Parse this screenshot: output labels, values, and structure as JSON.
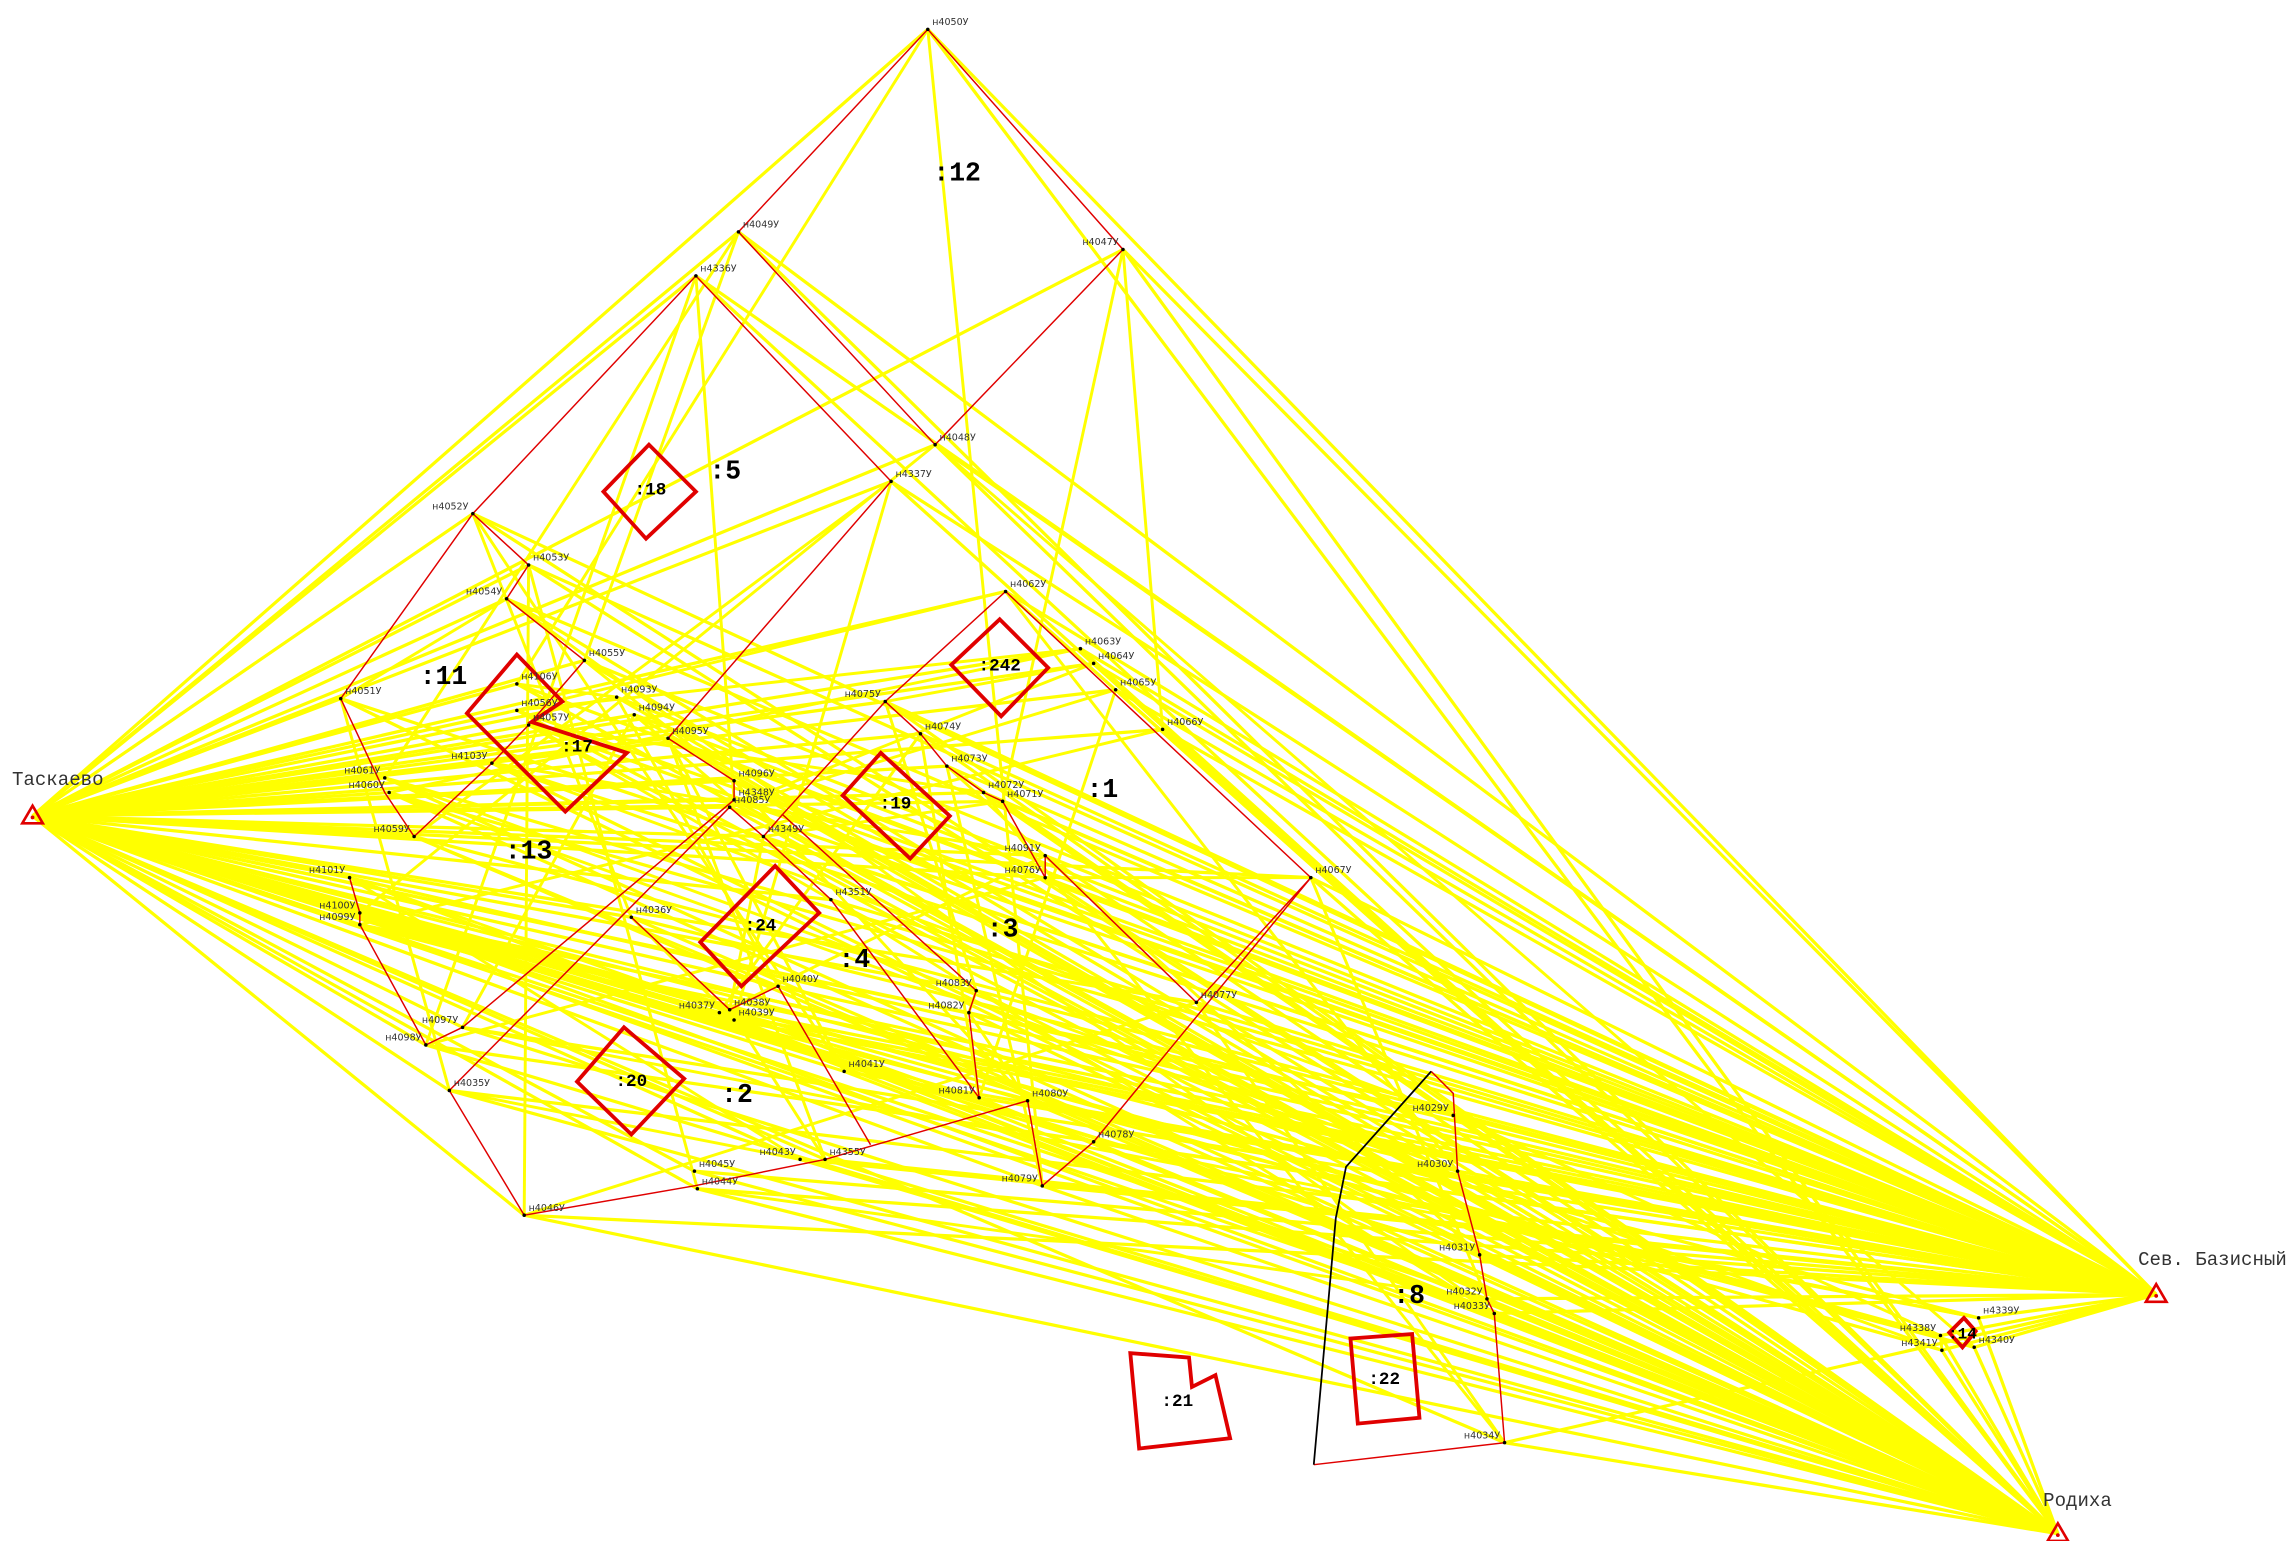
{
  "stations": [
    {
      "label": "Таскаево"
    },
    {
      "label": "Сев. Базисный"
    },
    {
      "label": "Родиха"
    }
  ],
  "points": [
    {
      "label": "н4050У"
    },
    {
      "label": "н4049У"
    },
    {
      "label": "н4047У"
    },
    {
      "label": "н4336У"
    },
    {
      "label": "н4048У"
    },
    {
      "label": "н4337У"
    },
    {
      "label": "н4052У"
    },
    {
      "label": "н4053У"
    },
    {
      "label": "н4054У"
    },
    {
      "label": "н4055У"
    },
    {
      "label": "н4051У"
    },
    {
      "label": "н4106У"
    },
    {
      "label": "н4056У"
    },
    {
      "label": "н4057У"
    },
    {
      "label": "н4103У"
    },
    {
      "label": "н4093У"
    },
    {
      "label": "н4094У"
    },
    {
      "label": "н4095У"
    },
    {
      "label": "н4061У"
    },
    {
      "label": "н4060У"
    },
    {
      "label": "н4059У"
    },
    {
      "label": "н4062У"
    },
    {
      "label": "н4063У"
    },
    {
      "label": "н4064У"
    },
    {
      "label": "н4065У"
    },
    {
      "label": "н4066У"
    },
    {
      "label": "н4075У"
    },
    {
      "label": "н4074У"
    },
    {
      "label": "н4073У"
    },
    {
      "label": "н4072У"
    },
    {
      "label": "н4071У"
    },
    {
      "label": "н4096У"
    },
    {
      "label": "н4348У"
    },
    {
      "label": "н4085У"
    },
    {
      "label": "н4349У"
    },
    {
      "label": "н4067У"
    },
    {
      "label": "н4091У"
    },
    {
      "label": "н4076У"
    },
    {
      "label": "н4101У"
    },
    {
      "label": "н4100У"
    },
    {
      "label": "н4099У"
    },
    {
      "label": "н4036У"
    },
    {
      "label": "н4351У"
    },
    {
      "label": "н4040У"
    },
    {
      "label": "н4037У"
    },
    {
      "label": "н4038У"
    },
    {
      "label": "н4039У"
    },
    {
      "label": "н4083У"
    },
    {
      "label": "н4082У"
    },
    {
      "label": "н4077У"
    },
    {
      "label": "н4097У"
    },
    {
      "label": "н4098У"
    },
    {
      "label": "н4035У"
    },
    {
      "label": "н4041У"
    },
    {
      "label": "н4081У"
    },
    {
      "label": "н4080У"
    },
    {
      "label": "н4078У"
    },
    {
      "label": "н4355У"
    },
    {
      "label": "н4043У"
    },
    {
      "label": "н4045У"
    },
    {
      "label": "н4044У"
    },
    {
      "label": "н4079У"
    },
    {
      "label": "н4046У"
    },
    {
      "label": "н4029У"
    },
    {
      "label": "н4030У"
    },
    {
      "label": "н4031У"
    },
    {
      "label": "н4032У"
    },
    {
      "label": "н4033У"
    },
    {
      "label": "н4034У"
    },
    {
      "label": "н4339У"
    },
    {
      "label": "н4338У"
    },
    {
      "label": "н4341У"
    },
    {
      "label": "н4340У"
    }
  ],
  "parcels": [
    {
      "label": ":12"
    },
    {
      "label": ":5"
    },
    {
      "label": ":18"
    },
    {
      "label": ":11"
    },
    {
      "label": ":242"
    },
    {
      "label": ":17"
    },
    {
      "label": ":1"
    },
    {
      "label": ":19"
    },
    {
      "label": ":13"
    },
    {
      "label": ":3"
    },
    {
      "label": ":24"
    },
    {
      "label": ":4"
    },
    {
      "label": ":20"
    },
    {
      "label": ":2"
    },
    {
      "label": ":8"
    },
    {
      "label": ":14"
    },
    {
      "label": ":21"
    },
    {
      "label": ":22"
    }
  ]
}
